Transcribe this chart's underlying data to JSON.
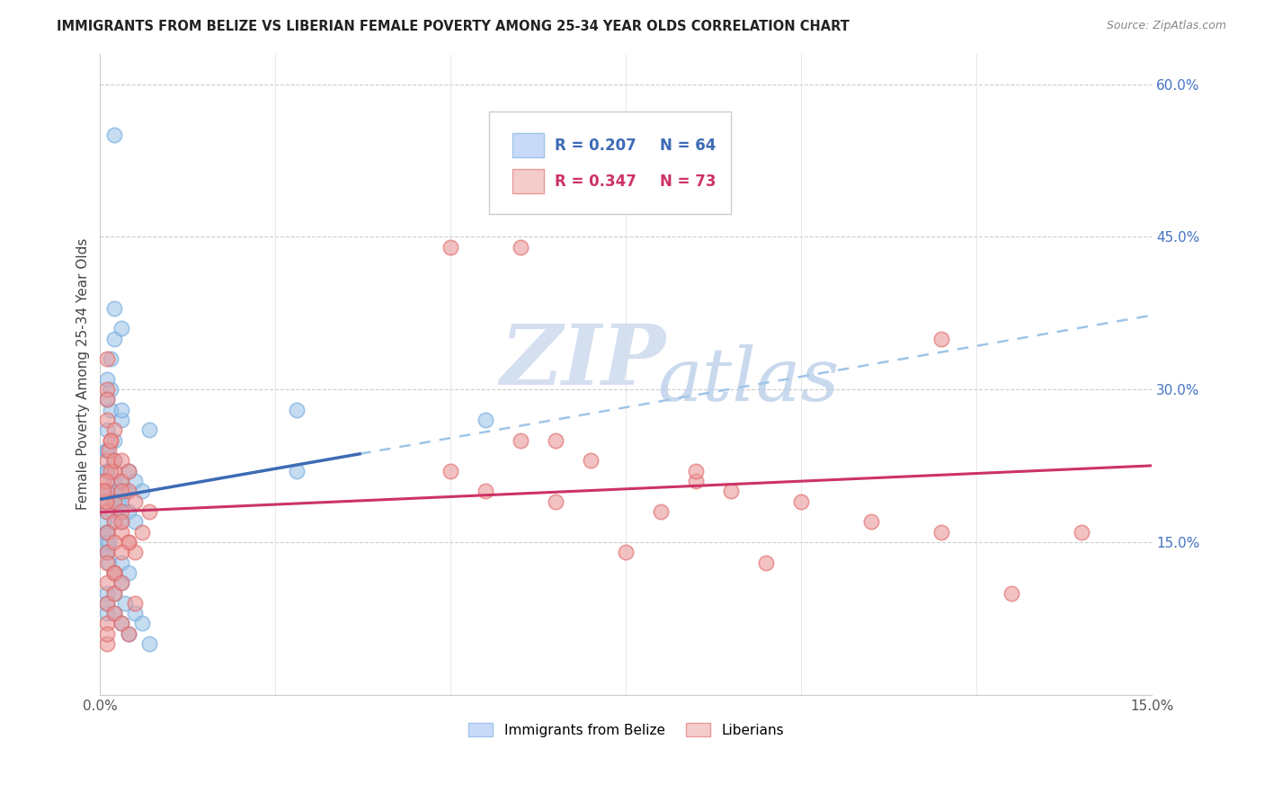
{
  "title": "IMMIGRANTS FROM BELIZE VS LIBERIAN FEMALE POVERTY AMONG 25-34 YEAR OLDS CORRELATION CHART",
  "source": "Source: ZipAtlas.com",
  "ylabel": "Female Poverty Among 25-34 Year Olds",
  "x_min": 0.0,
  "x_max": 0.15,
  "y_min": 0.0,
  "y_max": 0.63,
  "right_yticks": [
    0.15,
    0.3,
    0.45,
    0.6
  ],
  "right_yticklabels": [
    "15.0%",
    "30.0%",
    "45.0%",
    "60.0%"
  ],
  "blue_color": "#9fc5e8",
  "pink_color": "#ea9999",
  "blue_scatter_edge": "#6fa8dc",
  "pink_scatter_edge": "#e06666",
  "trend_blue_color": "#3d6bb5",
  "trend_pink_color": "#cc3366",
  "trend_blue_dash_color": "#9fc5e8",
  "watermark_zip": "ZIP",
  "watermark_atlas": "atlas",
  "watermark_color_zip": "#c8d8ee",
  "watermark_color_atlas": "#b8cfe8",
  "legend_blue_r": "R = 0.207",
  "legend_blue_n": "N = 64",
  "legend_pink_r": "R = 0.347",
  "legend_pink_n": "N = 73",
  "legend_text_color": "#3d6bb5",
  "legend_pink_text_color": "#cc3366",
  "belize_x": [
    0.0005,
    0.0008,
    0.001,
    0.001,
    0.0015,
    0.0015,
    0.002,
    0.002,
    0.002,
    0.002,
    0.0025,
    0.0025,
    0.003,
    0.003,
    0.003,
    0.003,
    0.0035,
    0.004,
    0.004,
    0.005,
    0.005,
    0.006,
    0.007,
    0.001,
    0.001,
    0.0015,
    0.002,
    0.002,
    0.003,
    0.003,
    0.001,
    0.001,
    0.001,
    0.0008,
    0.0008,
    0.001,
    0.001,
    0.0012,
    0.0012,
    0.002,
    0.002,
    0.0025,
    0.003,
    0.003,
    0.004,
    0.001,
    0.001,
    0.001,
    0.0005,
    0.0005,
    0.001,
    0.001,
    0.002,
    0.002,
    0.003,
    0.0035,
    0.004,
    0.005,
    0.006,
    0.007,
    0.028,
    0.028,
    0.055,
    0.002
  ],
  "belize_y": [
    0.2,
    0.24,
    0.22,
    0.26,
    0.28,
    0.3,
    0.19,
    0.21,
    0.23,
    0.25,
    0.18,
    0.2,
    0.17,
    0.19,
    0.21,
    0.27,
    0.2,
    0.22,
    0.18,
    0.21,
    0.17,
    0.2,
    0.26,
    0.29,
    0.31,
    0.33,
    0.35,
    0.38,
    0.36,
    0.28,
    0.16,
    0.14,
    0.15,
    0.18,
    0.2,
    0.22,
    0.24,
    0.13,
    0.15,
    0.12,
    0.17,
    0.19,
    0.11,
    0.13,
    0.12,
    0.1,
    0.08,
    0.09,
    0.17,
    0.19,
    0.14,
    0.16,
    0.08,
    0.1,
    0.07,
    0.09,
    0.06,
    0.08,
    0.07,
    0.05,
    0.28,
    0.22,
    0.27,
    0.55
  ],
  "liberian_x": [
    0.0005,
    0.0008,
    0.001,
    0.001,
    0.001,
    0.0015,
    0.002,
    0.002,
    0.002,
    0.003,
    0.003,
    0.003,
    0.004,
    0.004,
    0.005,
    0.005,
    0.006,
    0.007,
    0.001,
    0.001,
    0.0012,
    0.0015,
    0.002,
    0.002,
    0.003,
    0.003,
    0.004,
    0.001,
    0.001,
    0.0008,
    0.0008,
    0.001,
    0.001,
    0.0015,
    0.002,
    0.002,
    0.003,
    0.004,
    0.001,
    0.001,
    0.0005,
    0.001,
    0.001,
    0.002,
    0.002,
    0.003,
    0.004,
    0.005,
    0.001,
    0.001,
    0.002,
    0.003,
    0.003,
    0.05,
    0.055,
    0.06,
    0.065,
    0.07,
    0.08,
    0.085,
    0.09,
    0.1,
    0.11,
    0.12,
    0.13,
    0.14,
    0.095,
    0.075,
    0.085,
    0.065,
    0.06,
    0.05,
    0.12
  ],
  "liberian_y": [
    0.21,
    0.19,
    0.23,
    0.2,
    0.18,
    0.25,
    0.22,
    0.17,
    0.19,
    0.21,
    0.16,
    0.18,
    0.2,
    0.15,
    0.19,
    0.14,
    0.16,
    0.18,
    0.27,
    0.3,
    0.24,
    0.22,
    0.26,
    0.23,
    0.2,
    0.17,
    0.15,
    0.33,
    0.29,
    0.21,
    0.19,
    0.14,
    0.16,
    0.25,
    0.12,
    0.15,
    0.23,
    0.22,
    0.13,
    0.11,
    0.2,
    0.09,
    0.07,
    0.08,
    0.1,
    0.07,
    0.06,
    0.09,
    0.05,
    0.06,
    0.12,
    0.14,
    0.11,
    0.22,
    0.2,
    0.25,
    0.19,
    0.23,
    0.18,
    0.21,
    0.2,
    0.19,
    0.17,
    0.16,
    0.1,
    0.16,
    0.13,
    0.14,
    0.22,
    0.25,
    0.44,
    0.44,
    0.35
  ]
}
